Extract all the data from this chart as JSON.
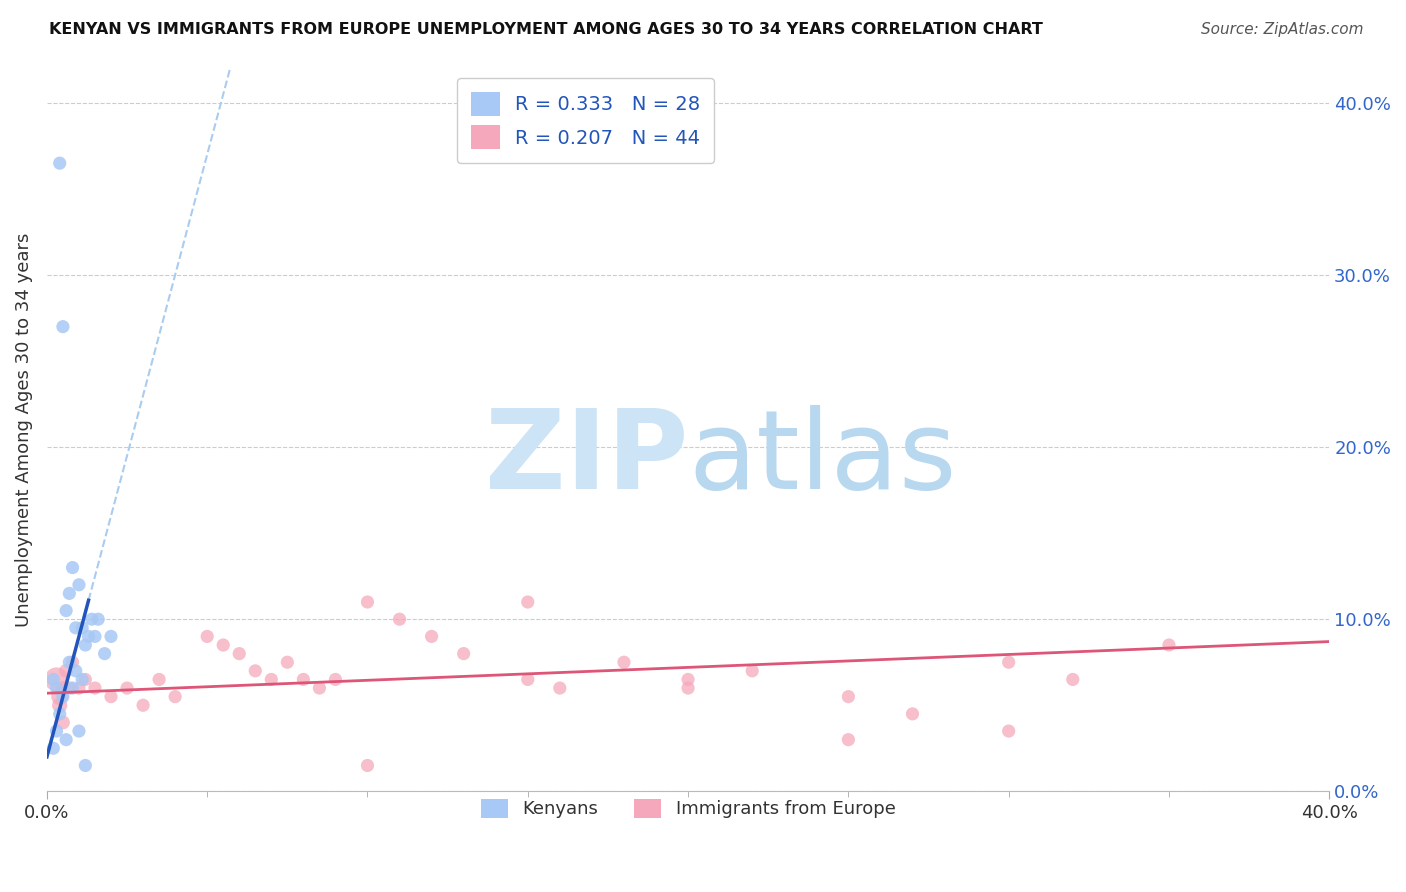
{
  "title": "KENYAN VS IMMIGRANTS FROM EUROPE UNEMPLOYMENT AMONG AGES 30 TO 34 YEARS CORRELATION CHART",
  "source": "Source: ZipAtlas.com",
  "ylabel": "Unemployment Among Ages 30 to 34 years",
  "xlim": [
    0.0,
    0.4
  ],
  "ylim": [
    0.0,
    0.42
  ],
  "yticks": [
    0.0,
    0.1,
    0.2,
    0.3,
    0.4
  ],
  "ytick_labels": [
    "0.0%",
    "10.0%",
    "20.0%",
    "30.0%",
    "40.0%"
  ],
  "xticks_major": [
    0.0,
    0.4
  ],
  "xtick_labels": [
    "0.0%",
    "40.0%"
  ],
  "xticks_minor": [
    0.05,
    0.1,
    0.15,
    0.2,
    0.25,
    0.3,
    0.35
  ],
  "legend_kenyans": "Kenyans",
  "legend_europe": "Immigrants from Europe",
  "R_kenyans": 0.333,
  "N_kenyans": 28,
  "R_europe": 0.207,
  "N_europe": 44,
  "color_kenyans": "#a8c8f5",
  "color_europe": "#f5a8bb",
  "color_kenyans_line": "#2255bb",
  "color_europe_line": "#dd5577",
  "color_dashed": "#aaccee",
  "watermark_zip_color": "#cce4f5",
  "watermark_atlas_color": "#b8d8f0",
  "kenyans_x": [
    0.002,
    0.004,
    0.005,
    0.006,
    0.007,
    0.008,
    0.009,
    0.01,
    0.011,
    0.012,
    0.013,
    0.014,
    0.015,
    0.016,
    0.018,
    0.02,
    0.003,
    0.005,
    0.007,
    0.009,
    0.011,
    0.004,
    0.008,
    0.003,
    0.006,
    0.01,
    0.002,
    0.012
  ],
  "kenyans_y": [
    0.065,
    0.365,
    0.27,
    0.105,
    0.115,
    0.13,
    0.095,
    0.12,
    0.095,
    0.085,
    0.09,
    0.1,
    0.09,
    0.1,
    0.08,
    0.09,
    0.06,
    0.055,
    0.075,
    0.07,
    0.065,
    0.045,
    0.06,
    0.035,
    0.03,
    0.035,
    0.025,
    0.015
  ],
  "europe_x": [
    0.003,
    0.004,
    0.004,
    0.005,
    0.005,
    0.006,
    0.007,
    0.008,
    0.01,
    0.012,
    0.015,
    0.02,
    0.025,
    0.03,
    0.035,
    0.04,
    0.05,
    0.055,
    0.06,
    0.065,
    0.07,
    0.075,
    0.08,
    0.085,
    0.09,
    0.1,
    0.11,
    0.12,
    0.13,
    0.15,
    0.16,
    0.18,
    0.2,
    0.22,
    0.25,
    0.27,
    0.3,
    0.32,
    0.35,
    0.3,
    0.25,
    0.2,
    0.15,
    0.1
  ],
  "europe_y": [
    0.065,
    0.055,
    0.05,
    0.06,
    0.04,
    0.07,
    0.06,
    0.075,
    0.06,
    0.065,
    0.06,
    0.055,
    0.06,
    0.05,
    0.065,
    0.055,
    0.09,
    0.085,
    0.08,
    0.07,
    0.065,
    0.075,
    0.065,
    0.06,
    0.065,
    0.11,
    0.1,
    0.09,
    0.08,
    0.065,
    0.06,
    0.075,
    0.06,
    0.07,
    0.055,
    0.045,
    0.075,
    0.065,
    0.085,
    0.035,
    0.03,
    0.065,
    0.11,
    0.015
  ],
  "europe_sizes": [
    300,
    150,
    120,
    100,
    100,
    100,
    90,
    90,
    90,
    90,
    90,
    90,
    90,
    90,
    90,
    90,
    90,
    90,
    90,
    90,
    90,
    90,
    90,
    90,
    90,
    90,
    90,
    90,
    90,
    90,
    90,
    90,
    90,
    90,
    90,
    90,
    90,
    90,
    90,
    90,
    90,
    90,
    90,
    90
  ],
  "kenyans_sizes": [
    90,
    90,
    90,
    90,
    90,
    90,
    90,
    90,
    90,
    90,
    90,
    90,
    90,
    90,
    90,
    90,
    90,
    90,
    90,
    90,
    90,
    90,
    90,
    90,
    90,
    90,
    90,
    90
  ],
  "slope_k": 7.0,
  "intercept_k": 0.02,
  "line_k_x_end": 0.013,
  "slope_e": 0.075,
  "intercept_e": 0.057
}
